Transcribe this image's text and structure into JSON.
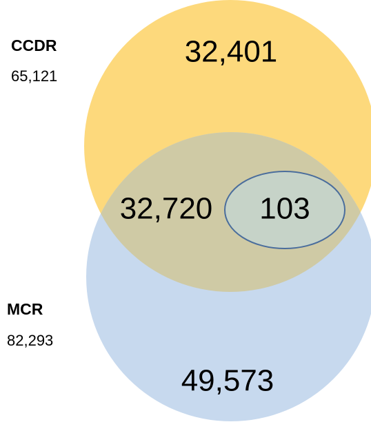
{
  "sets": [
    {
      "label": "CCDR",
      "total": "65,121"
    },
    {
      "label": "MCR",
      "total": "82,293"
    }
  ],
  "regions": {
    "ccdr_only": "32,401",
    "overlap": "32,720",
    "inner": "103",
    "mcr_only": "49,573"
  }
}
